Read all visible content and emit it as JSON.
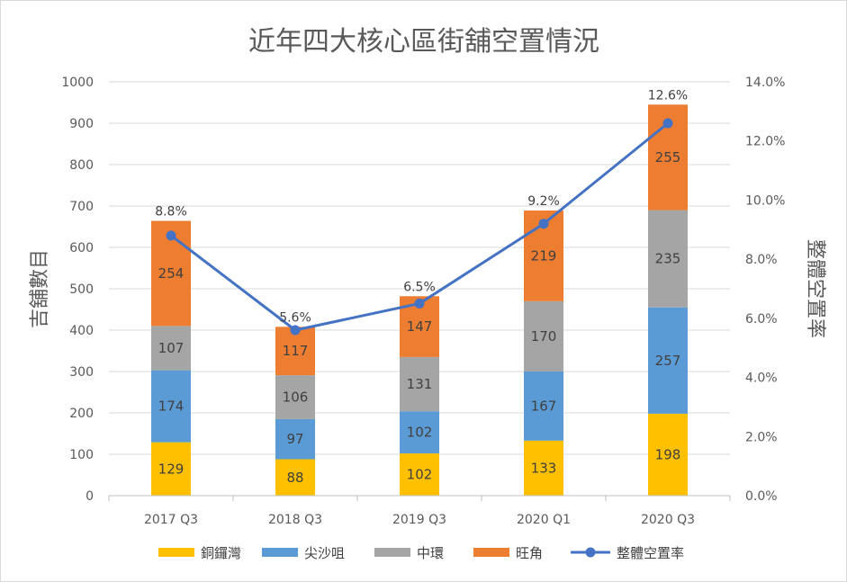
{
  "chart_data": {
    "type": "bar",
    "stacked": true,
    "title": "近年四大核心區街舖空置情況",
    "ylabel": "吉舖數目",
    "y2label": "整體空置率",
    "ylim": [
      0,
      1000
    ],
    "y2lim": [
      0,
      14
    ],
    "yticks": [
      "0",
      "100",
      "200",
      "300",
      "400",
      "500",
      "600",
      "700",
      "800",
      "900",
      "1000"
    ],
    "y2ticks": [
      "0.0%",
      "2.0%",
      "4.0%",
      "6.0%",
      "8.0%",
      "10.0%",
      "12.0%",
      "14.0%"
    ],
    "grid": true,
    "legend_position": "bottom",
    "categories": [
      "2017 Q3",
      "2018 Q3",
      "2019 Q3",
      "2020 Q1",
      "2020 Q3"
    ],
    "series": [
      {
        "name": "銅鑼灣",
        "color": "#ffc000",
        "values": [
          129,
          88,
          102,
          133,
          198
        ],
        "labels": [
          "129",
          "88",
          "102",
          "133",
          "198"
        ]
      },
      {
        "name": "尖沙咀",
        "color": "#5b9bd5",
        "values": [
          174,
          97,
          102,
          167,
          257
        ],
        "labels": [
          "174",
          "97",
          "102",
          "167",
          "257"
        ]
      },
      {
        "name": "中環",
        "color": "#a5a5a5",
        "values": [
          107,
          106,
          131,
          170,
          235
        ],
        "labels": [
          "107",
          "106",
          "131",
          "170",
          "235"
        ]
      },
      {
        "name": "旺角",
        "color": "#ed7d31",
        "values": [
          254,
          117,
          147,
          219,
          255
        ],
        "labels": [
          "254",
          "117",
          "147",
          "219",
          "255"
        ]
      }
    ],
    "line_series": {
      "name": "整體空置率",
      "color": "#4472c4",
      "axis": "right",
      "values": [
        8.8,
        5.6,
        6.5,
        9.2,
        12.6
      ],
      "labels": [
        "8.8%",
        "5.6%",
        "6.5%",
        "9.2%",
        "12.6%"
      ]
    }
  }
}
